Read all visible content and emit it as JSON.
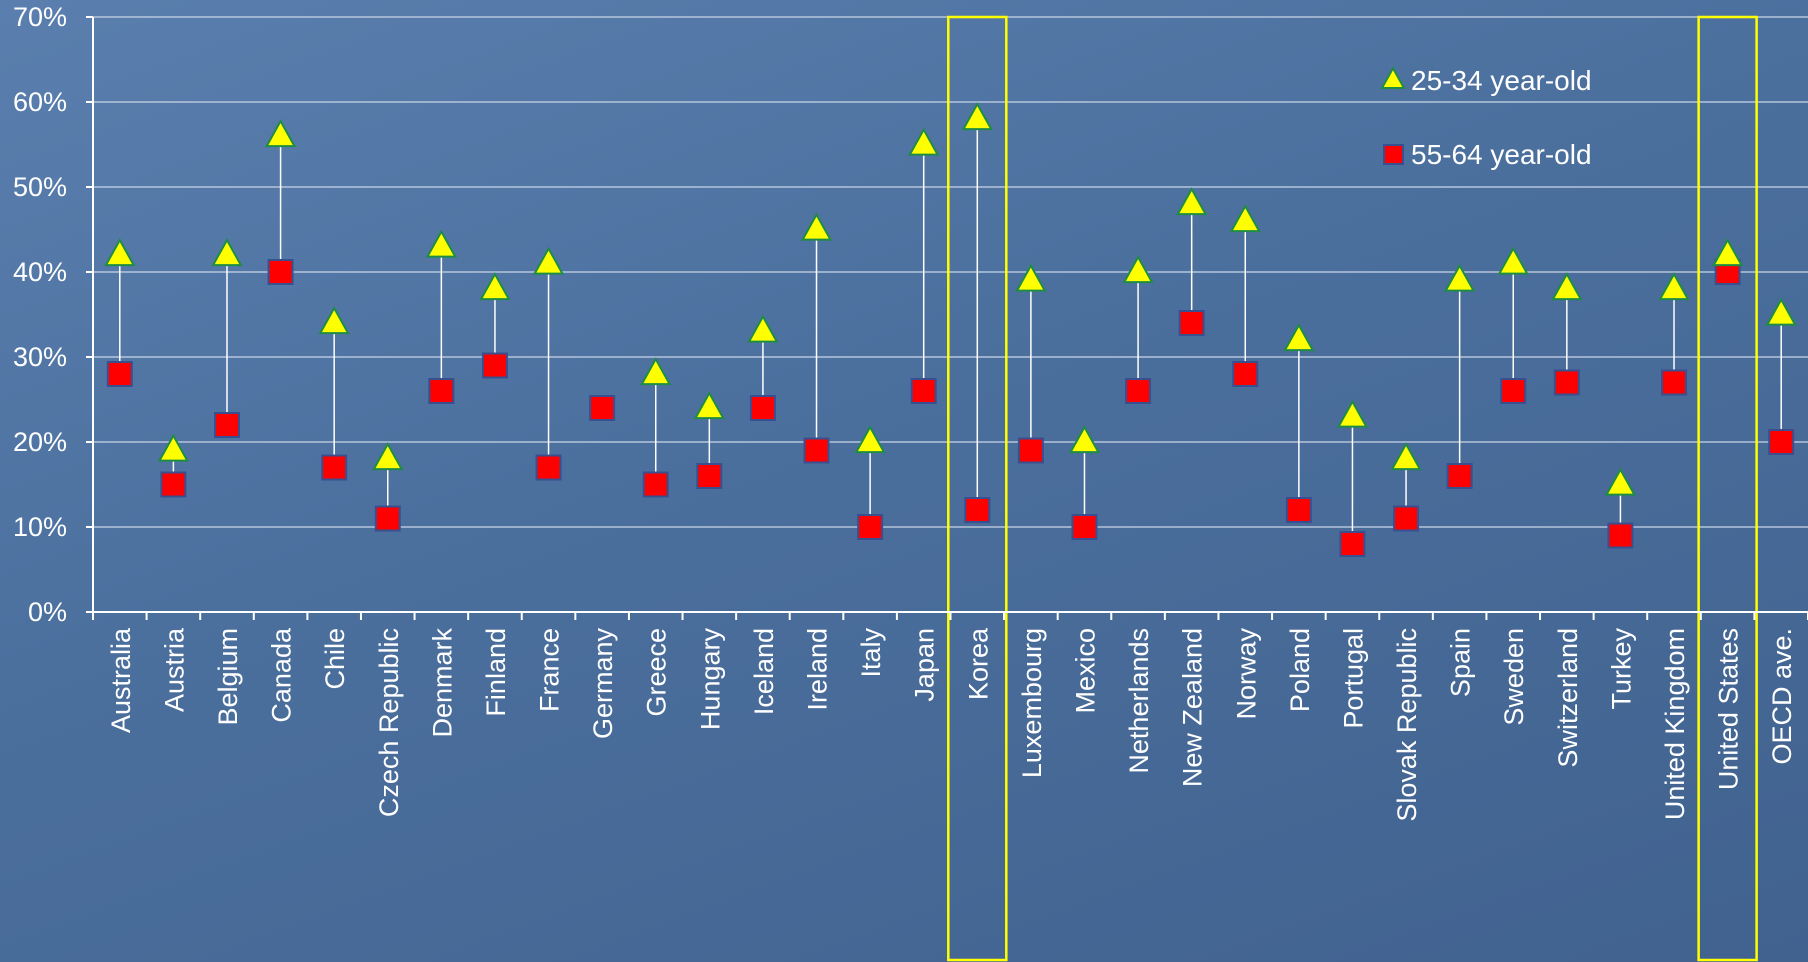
{
  "chart_data": {
    "type": "scatter",
    "title": "",
    "xlabel": "",
    "ylabel": "",
    "ylim": [
      0,
      70
    ],
    "ytick_labels": [
      "0%",
      "10%",
      "20%",
      "30%",
      "40%",
      "50%",
      "60%",
      "70%"
    ],
    "grid": true,
    "legend_position": "top-right",
    "categories": [
      "Australia",
      "Austria",
      "Belgium",
      "Canada",
      "Chile",
      "Czech Republic",
      "Denmark",
      "Finland",
      "France",
      "Germany",
      "Greece",
      "Hungary",
      "Iceland",
      "Ireland",
      "Italy",
      "Japan",
      "Korea",
      "Luxembourg",
      "Mexico",
      "Netherlands",
      "New Zealand",
      "Norway",
      "Poland",
      "Portugal",
      "Slovak Republic",
      "Spain",
      "Sweden",
      "Switzerland",
      "Turkey",
      "United Kingdom",
      "United States",
      "OECD ave."
    ],
    "series": [
      {
        "name": "25-34 year-old",
        "marker": "triangle",
        "color": "#ffff00",
        "values": [
          42,
          19,
          42,
          56,
          34,
          18,
          43,
          38,
          41,
          null,
          28,
          24,
          33,
          45,
          20,
          55,
          58,
          39,
          20,
          40,
          48,
          46,
          32,
          23,
          18,
          39,
          41,
          38,
          15,
          38,
          42,
          35
        ]
      },
      {
        "name": "55-64 year-old",
        "marker": "square",
        "color": "#ff0000",
        "values": [
          28,
          15,
          22,
          40,
          17,
          11,
          26,
          29,
          17,
          24,
          15,
          16,
          24,
          19,
          10,
          26,
          12,
          19,
          10,
          26,
          34,
          28,
          12,
          8,
          11,
          16,
          26,
          27,
          9,
          27,
          40,
          20
        ]
      }
    ],
    "highlighted_categories": [
      "Korea",
      "United States"
    ],
    "highlight_color": "#ffff00",
    "connector_color": "#ffffff",
    "grid_color": "#c8d4e6"
  }
}
